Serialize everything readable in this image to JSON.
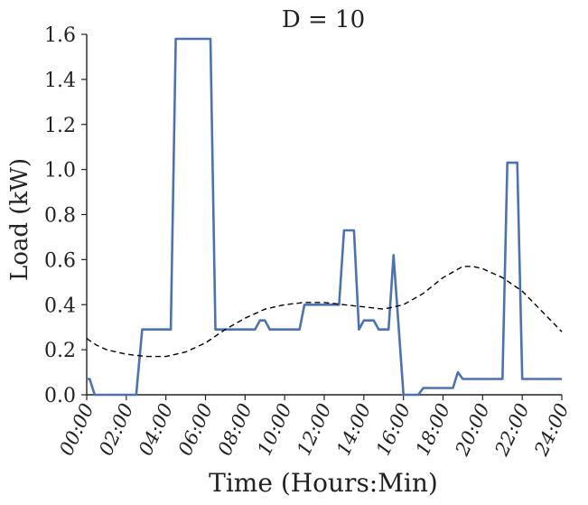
{
  "chart_data": {
    "type": "line",
    "title": "D = 10",
    "xlabel": "Time (Hours:Min)",
    "ylabel": "Load (kW)",
    "xlim": [
      0,
      24
    ],
    "ylim": [
      0,
      1.6
    ],
    "xticks": [
      0,
      2,
      4,
      6,
      8,
      10,
      12,
      14,
      16,
      18,
      20,
      22,
      24
    ],
    "xtick_labels": [
      "00:00",
      "02:00",
      "04:00",
      "06:00",
      "08:00",
      "10:00",
      "12:00",
      "14:00",
      "16:00",
      "18:00",
      "20:00",
      "22:00",
      "24:00"
    ],
    "yticks": [
      0,
      0.2,
      0.4,
      0.6,
      0.8,
      1.0,
      1.2,
      1.4,
      1.6
    ],
    "ytick_labels": [
      "0.0",
      "0.2",
      "0.4",
      "0.6",
      "0.8",
      "1.0",
      "1.2",
      "1.4",
      "1.6"
    ],
    "grid": false,
    "series": [
      {
        "style": "solid",
        "color": "#4c72b0",
        "points": [
          [
            0,
            0.07
          ],
          [
            0.15,
            0.07
          ],
          [
            0.4,
            0
          ],
          [
            2.0,
            0
          ],
          [
            2.5,
            0
          ],
          [
            2.8,
            0.29
          ],
          [
            3.0,
            0.29
          ],
          [
            4.0,
            0.29
          ],
          [
            4.25,
            0.29
          ],
          [
            4.5,
            1.58
          ],
          [
            6.0,
            1.58
          ],
          [
            6.25,
            1.58
          ],
          [
            6.5,
            0.29
          ],
          [
            7.5,
            0.29
          ],
          [
            8.5,
            0.29
          ],
          [
            8.75,
            0.33
          ],
          [
            9.0,
            0.33
          ],
          [
            9.25,
            0.29
          ],
          [
            10.0,
            0.29
          ],
          [
            10.75,
            0.29
          ],
          [
            11.0,
            0.4
          ],
          [
            12.0,
            0.4
          ],
          [
            12.75,
            0.4
          ],
          [
            13.0,
            0.73
          ],
          [
            13.5,
            0.73
          ],
          [
            13.75,
            0.29
          ],
          [
            14.0,
            0.33
          ],
          [
            14.5,
            0.33
          ],
          [
            14.75,
            0.29
          ],
          [
            15.25,
            0.29
          ],
          [
            15.5,
            0.62
          ],
          [
            16.0,
            0
          ],
          [
            16.75,
            0
          ],
          [
            17.0,
            0.03
          ],
          [
            17.5,
            0.03
          ],
          [
            18.5,
            0.03
          ],
          [
            18.75,
            0.1
          ],
          [
            19.0,
            0.07
          ],
          [
            20.0,
            0.07
          ],
          [
            21.0,
            0.07
          ],
          [
            21.25,
            1.03
          ],
          [
            21.75,
            1.03
          ],
          [
            22.0,
            0.07
          ],
          [
            23.0,
            0.07
          ],
          [
            24.0,
            0.07
          ]
        ]
      },
      {
        "style": "dashed",
        "color": "#000000",
        "points": [
          [
            0,
            0.25
          ],
          [
            0.5,
            0.22
          ],
          [
            1,
            0.2
          ],
          [
            2,
            0.18
          ],
          [
            3,
            0.17
          ],
          [
            4,
            0.17
          ],
          [
            5,
            0.19
          ],
          [
            6,
            0.23
          ],
          [
            7,
            0.29
          ],
          [
            8,
            0.34
          ],
          [
            9,
            0.38
          ],
          [
            10,
            0.4
          ],
          [
            11,
            0.41
          ],
          [
            12,
            0.41
          ],
          [
            13,
            0.4
          ],
          [
            14,
            0.39
          ],
          [
            15,
            0.38
          ],
          [
            16,
            0.4
          ],
          [
            17,
            0.45
          ],
          [
            18,
            0.52
          ],
          [
            19,
            0.57
          ],
          [
            19.5,
            0.57
          ],
          [
            20,
            0.56
          ],
          [
            21,
            0.52
          ],
          [
            22,
            0.46
          ],
          [
            23,
            0.37
          ],
          [
            24,
            0.28
          ]
        ]
      }
    ]
  }
}
